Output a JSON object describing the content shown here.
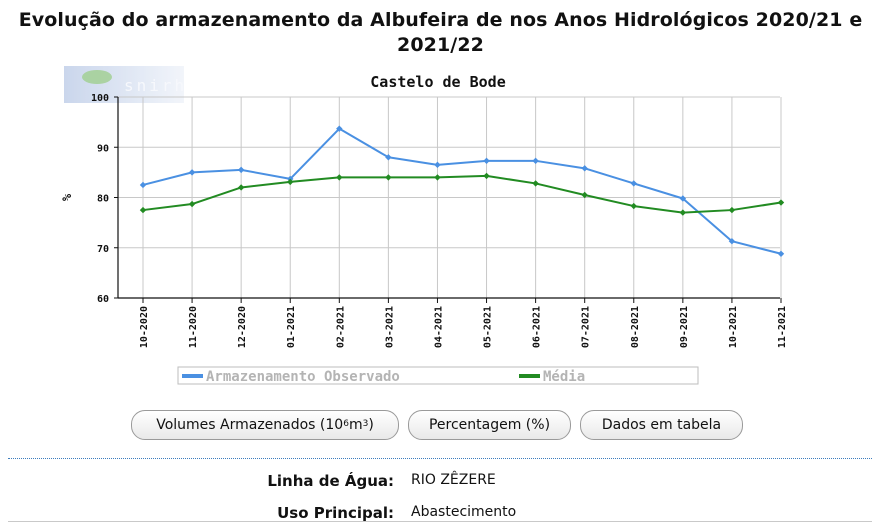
{
  "title": "Evolução do armazenamento da Albufeira de nos Anos Hidrológicos 2020/21 e 2021/22",
  "title_lines": [
    "Evolução do armazenamento da Albufeira de nos Anos Hidrológicos 2020/21 e",
    "2021/22"
  ],
  "buttons": {
    "volumes_label": "Volumes Armazenados (10",
    "volumes_exp": "6",
    "volumes_unit": " m",
    "volumes_unit_exp": "3",
    "volumes_close": ")",
    "percent_label": "Percentagem (%)",
    "table_label": "Dados em tabela"
  },
  "info": {
    "river_label": "Linha de Água:",
    "river_value": "RIO ZÊZERE",
    "use_label": "Uso Principal:",
    "use_value": "Abastecimento"
  },
  "colors": {
    "observed": "#4a90e2",
    "average": "#228b22",
    "legend_text": "#b4b4b4"
  },
  "chart_data": {
    "type": "line",
    "title": "Castelo de Bode",
    "xlabel": "",
    "ylabel": "%",
    "ylim": [
      60,
      100
    ],
    "yticks": [
      60,
      70,
      80,
      90,
      100
    ],
    "grid": true,
    "legend_position": "bottom",
    "categories": [
      "10-2020",
      "11-2020",
      "12-2020",
      "01-2021",
      "02-2021",
      "03-2021",
      "04-2021",
      "05-2021",
      "06-2021",
      "07-2021",
      "08-2021",
      "09-2021",
      "10-2021",
      "11-2021"
    ],
    "series": [
      {
        "name": "Armazenamento Observado",
        "color": "#4a90e2",
        "values": [
          82.5,
          85,
          85.5,
          83.7,
          93.7,
          88,
          86.5,
          87.3,
          87.3,
          85.8,
          82.8,
          79.8,
          71.3,
          68.8
        ]
      },
      {
        "name": "Média",
        "color": "#228b22",
        "values": [
          77.5,
          78.7,
          82,
          83.1,
          84,
          84,
          84,
          84.3,
          82.8,
          80.5,
          78.3,
          77,
          77.5,
          79
        ]
      }
    ]
  }
}
